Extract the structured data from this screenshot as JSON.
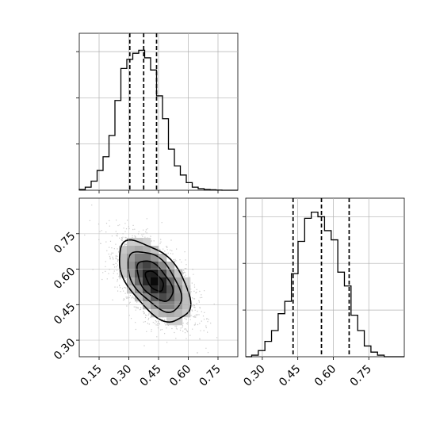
{
  "chart_data": [
    {
      "type": "histogram",
      "panel": "x-marginal",
      "x_range": [
        0.05,
        0.85
      ],
      "bin_edges": [
        0.05,
        0.08,
        0.11,
        0.14,
        0.17,
        0.2,
        0.23,
        0.26,
        0.29,
        0.32,
        0.35,
        0.38,
        0.41,
        0.44,
        0.47,
        0.5,
        0.53,
        0.56,
        0.59,
        0.62,
        0.65,
        0.68,
        0.71,
        0.74,
        0.77
      ],
      "counts": [
        0.005,
        0.02,
        0.06,
        0.13,
        0.22,
        0.36,
        0.59,
        0.8,
        0.86,
        0.9,
        0.92,
        0.87,
        0.79,
        0.62,
        0.47,
        0.27,
        0.16,
        0.1,
        0.05,
        0.02,
        0.01,
        0.005,
        0.003,
        0.001
      ],
      "quantiles": [
        0.305,
        0.375,
        0.44
      ],
      "xticks": [
        "0.15",
        "0.30",
        "0.45",
        "0.60",
        "0.75"
      ],
      "xtick_values": [
        0.15,
        0.3,
        0.45,
        0.6,
        0.75
      ],
      "grid": true
    },
    {
      "type": "histogram",
      "panel": "y-marginal",
      "x_range": [
        0.23,
        0.9
      ],
      "bin_edges": [
        0.255,
        0.283,
        0.311,
        0.339,
        0.367,
        0.395,
        0.423,
        0.451,
        0.479,
        0.507,
        0.535,
        0.563,
        0.591,
        0.619,
        0.647,
        0.675,
        0.703,
        0.731,
        0.759,
        0.787,
        0.815
      ],
      "counts": [
        0.01,
        0.04,
        0.1,
        0.17,
        0.28,
        0.36,
        0.54,
        0.75,
        0.9,
        0.94,
        0.91,
        0.82,
        0.76,
        0.55,
        0.46,
        0.27,
        0.17,
        0.07,
        0.03,
        0.01
      ],
      "quantiles": [
        0.43,
        0.55,
        0.667
      ],
      "xticks": [
        "0.30",
        "0.45",
        "0.60",
        "0.75"
      ],
      "xtick_values": [
        0.3,
        0.45,
        0.6,
        0.75
      ],
      "grid": true
    },
    {
      "type": "heatmap",
      "panel": "joint",
      "x_range": [
        0.05,
        0.85
      ],
      "y_range": [
        0.23,
        0.9
      ],
      "xticks": [
        "0.15",
        "0.30",
        "0.45",
        "0.60",
        "0.75"
      ],
      "xtick_values": [
        0.15,
        0.3,
        0.45,
        0.6,
        0.75
      ],
      "yticks": [
        "0.30",
        "0.45",
        "0.60",
        "0.75"
      ],
      "ytick_values": [
        0.3,
        0.45,
        0.6,
        0.75
      ],
      "center": [
        0.43,
        0.55
      ],
      "sigma": [
        0.09,
        0.085
      ],
      "correlation": -0.55,
      "contour_levels_sigma": [
        0.5,
        1.0,
        1.5,
        2.0
      ],
      "grid": true
    }
  ]
}
